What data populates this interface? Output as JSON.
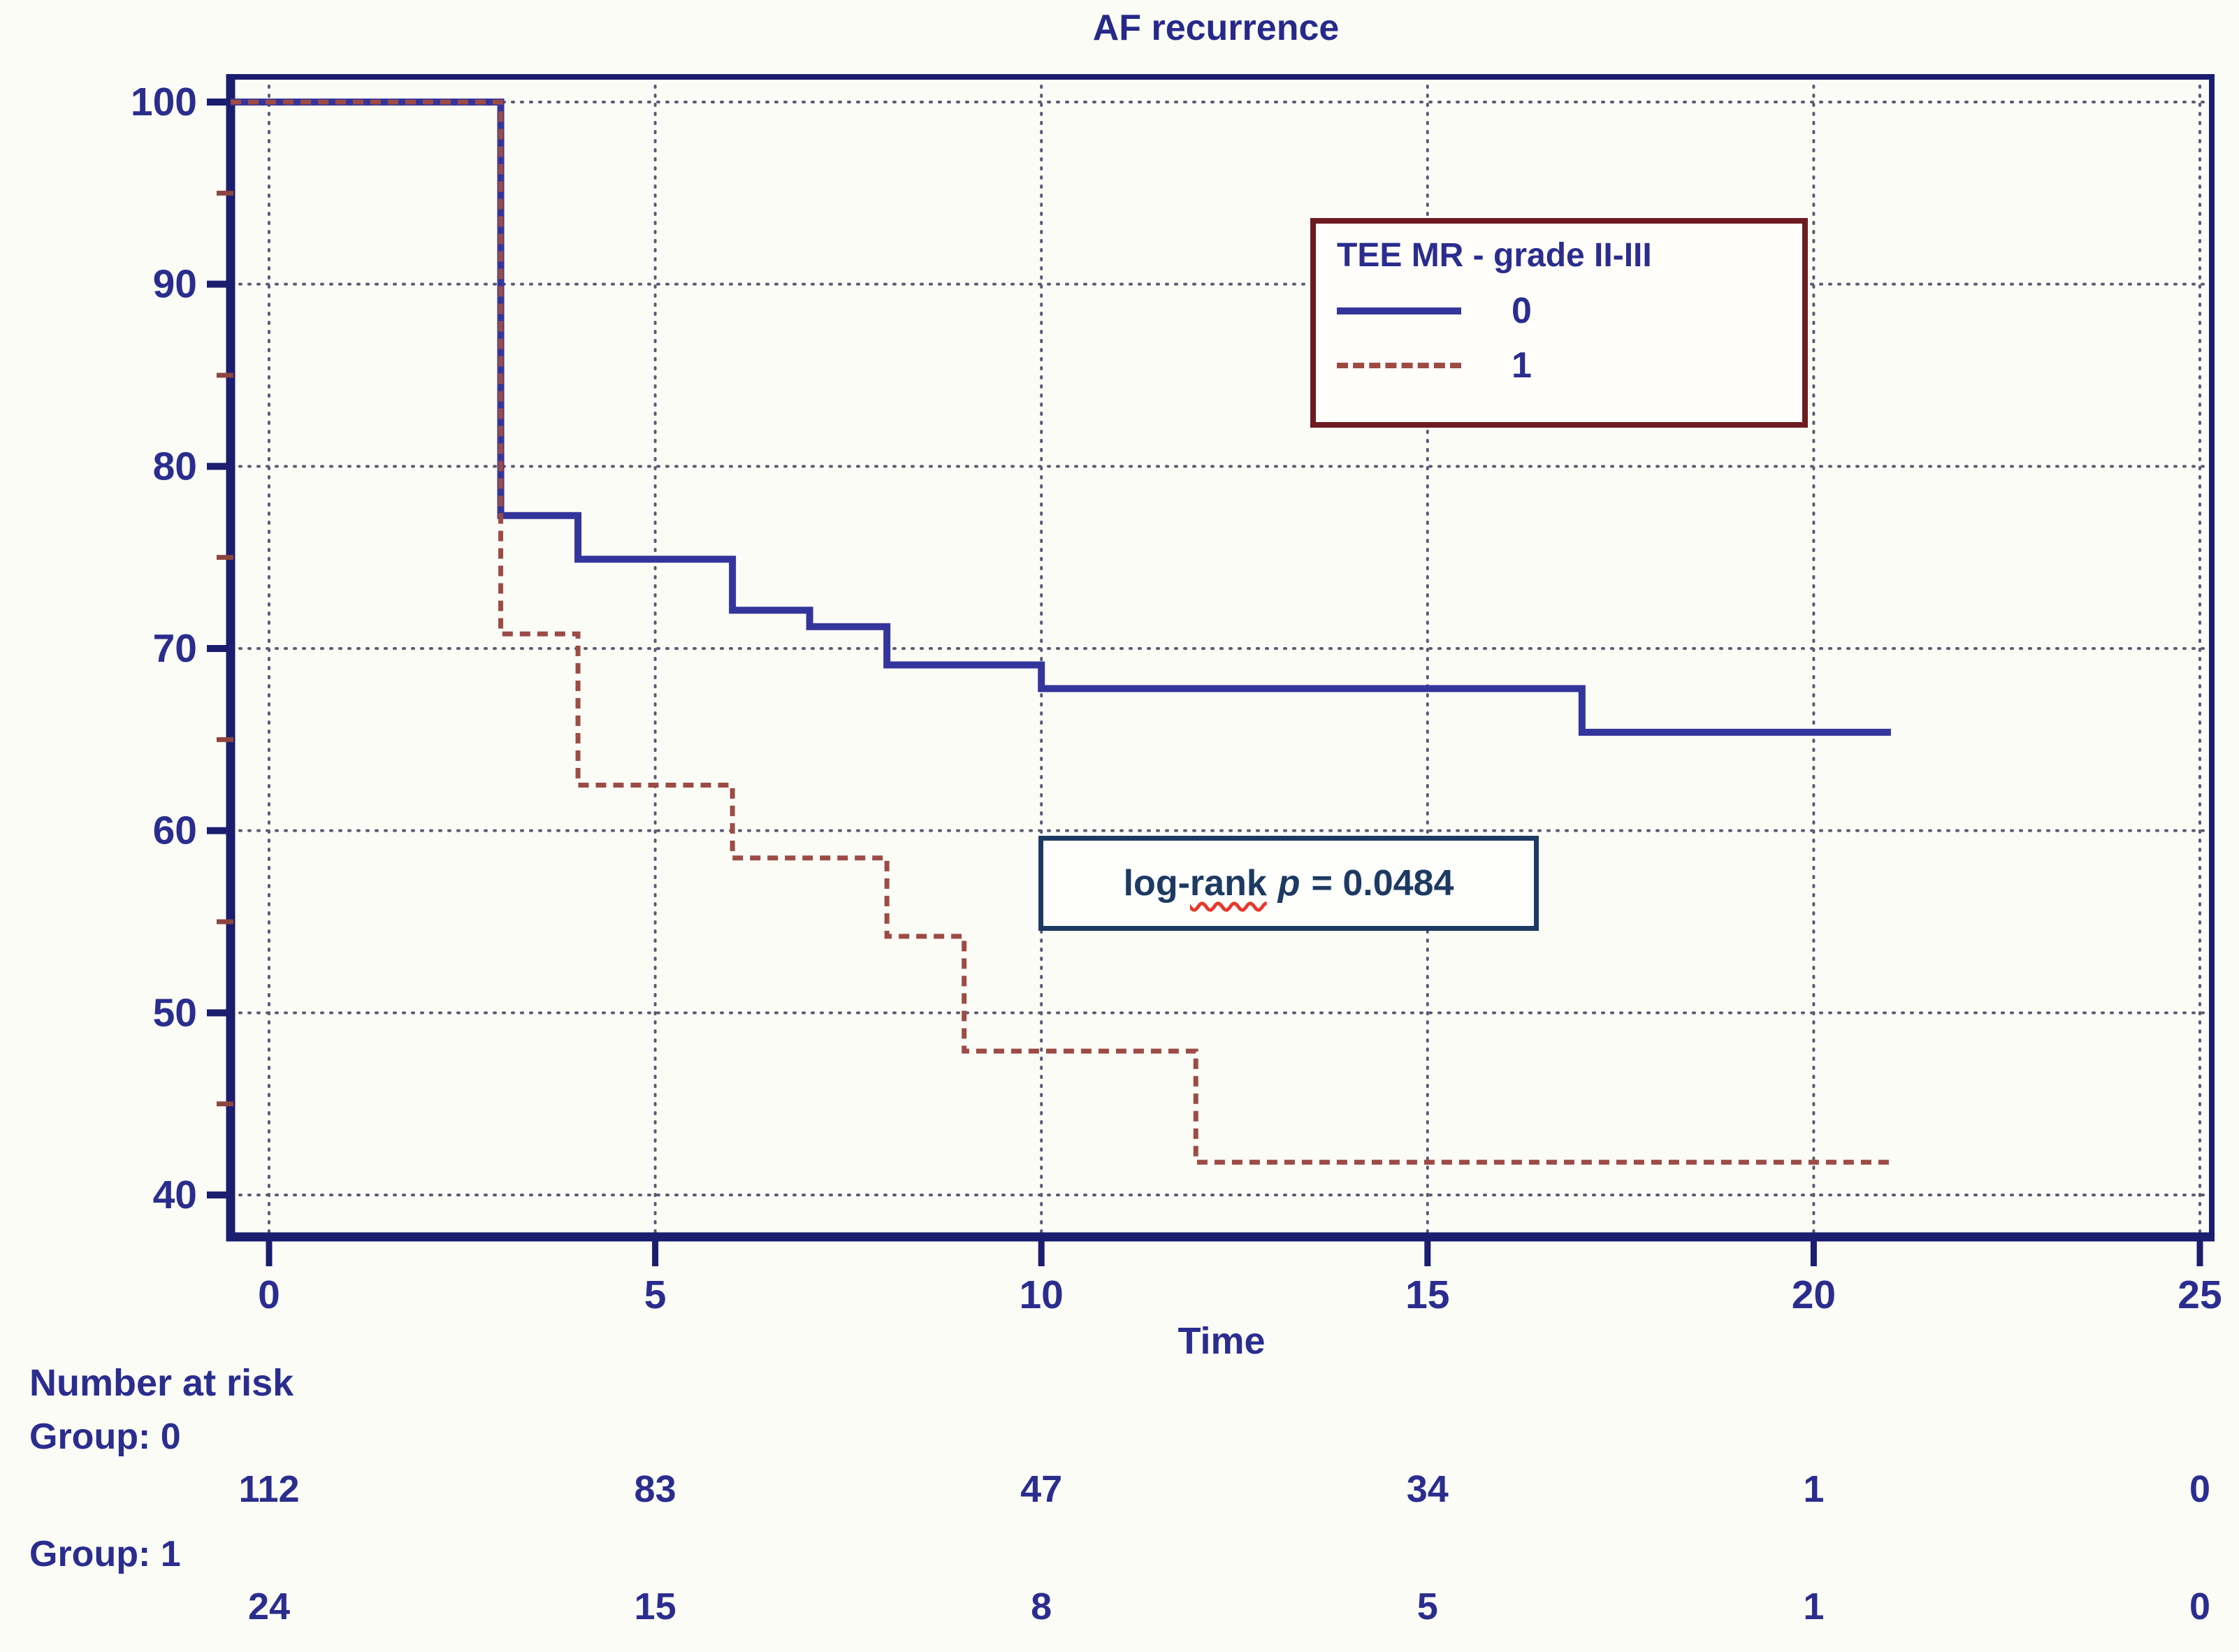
{
  "title": "AF recurrence",
  "axes": {
    "x_label": "Time",
    "x_ticks": [
      0,
      5,
      10,
      15,
      20,
      25
    ],
    "y_ticks": [
      40,
      50,
      60,
      70,
      80,
      90,
      100
    ],
    "y_minor_ticks": [
      45,
      55,
      65,
      75,
      85,
      95
    ]
  },
  "legend": {
    "title": "TEE MR - grade II-III",
    "items": [
      {
        "label": "0",
        "style": "solid",
        "color": "#34359c"
      },
      {
        "label": "1",
        "style": "dashed",
        "color": "#9d4b45"
      }
    ]
  },
  "annotation": {
    "prefix": "log-",
    "wavy_word": "rank",
    "p_symbol": "p",
    "rest": "= 0.0484",
    "full_text": "log-rank p = 0.0484"
  },
  "risk_table": {
    "heading": "Number at risk",
    "times": [
      0,
      5,
      10,
      15,
      20,
      25
    ],
    "groups": [
      {
        "label": "Group: 0",
        "values": [
          "112",
          "83",
          "47",
          "34",
          "1",
          "0"
        ]
      },
      {
        "label": "Group: 1",
        "values": [
          "24",
          "15",
          "8",
          "5",
          "1",
          "0"
        ]
      }
    ]
  },
  "colors": {
    "series0": "#34359c",
    "series1": "#9d4b45",
    "frame": "#1b1d6e",
    "grid": "#5b5b76",
    "text_navy": "#2b2d8e",
    "minor_tick": "#8d453f",
    "legend_border": "#6d1b20",
    "annotation": "#1d3a62"
  },
  "chart_data": {
    "type": "line",
    "subtype": "kaplan-meier-step",
    "title": "AF recurrence",
    "xlabel": "Time",
    "ylabel": "",
    "xlim": [
      -0.5,
      25.2
    ],
    "ylim": [
      37.8,
      101.4
    ],
    "x_ticks": [
      0,
      5,
      10,
      15,
      20,
      25
    ],
    "y_ticks": [
      40,
      50,
      60,
      70,
      80,
      90,
      100
    ],
    "grid": true,
    "legend_position": "upper right",
    "annotation": "log-rank p = 0.0484",
    "series": [
      {
        "name": "0",
        "legend": "TEE MR - grade II-III = 0",
        "style": "solid",
        "color": "#34359c",
        "step": "post",
        "points": [
          [
            0,
            100
          ],
          [
            3,
            77.3
          ],
          [
            4,
            74.9
          ],
          [
            6,
            72.1
          ],
          [
            7,
            71.2
          ],
          [
            8,
            69.1
          ],
          [
            10,
            67.8
          ],
          [
            17,
            65.4
          ]
        ],
        "end_x": 21
      },
      {
        "name": "1",
        "legend": "TEE MR - grade II-III = 1",
        "style": "dashed",
        "color": "#9d4b45",
        "step": "post",
        "points": [
          [
            0,
            100
          ],
          [
            3,
            70.8
          ],
          [
            4,
            62.5
          ],
          [
            6,
            58.5
          ],
          [
            8,
            54.2
          ],
          [
            9,
            47.9
          ],
          [
            12,
            41.8
          ]
        ],
        "end_x": 21
      }
    ]
  }
}
